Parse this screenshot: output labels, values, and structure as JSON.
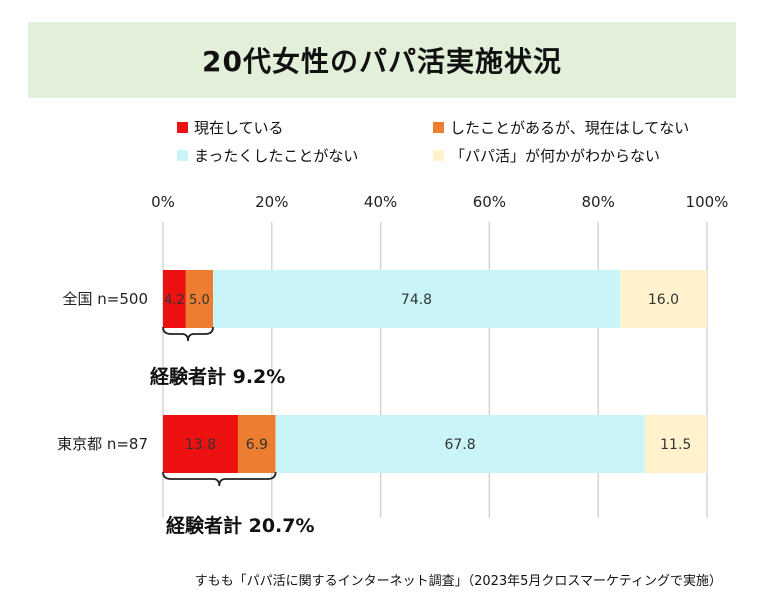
{
  "title": "20代女性のパパ活実施状況",
  "footnote": "すもも「パパ活に関するインターネット調査」（2023年5月クロスマーケティングで実施）",
  "colors": {
    "current": "#ee1111",
    "past": "#ed7d31",
    "never": "#c9f5f9",
    "unknown": "#fff2cc",
    "grid": "#d0d0d0",
    "title_band": "#e2efd9"
  },
  "chart_data": {
    "type": "bar",
    "orientation": "horizontal",
    "stacked": true,
    "title": "20代女性のパパ活実施状況",
    "categories": [
      "全国 n=500",
      "東京都 n=87"
    ],
    "series": [
      {
        "name": "現在している",
        "values": [
          4.2,
          13.8
        ],
        "color": "#ee1111"
      },
      {
        "name": "したことがあるが、現在はしてない",
        "values": [
          5.0,
          6.9
        ],
        "color": "#ed7d31"
      },
      {
        "name": "まったくしたことがない",
        "values": [
          74.8,
          67.8
        ],
        "color": "#c9f5f9"
      },
      {
        "name": "「パパ活」が何かがわからない",
        "values": [
          16.0,
          11.5
        ],
        "color": "#fff2cc"
      }
    ],
    "xlim": [
      0,
      100
    ],
    "xticks": [
      "0%",
      "20%",
      "40%",
      "60%",
      "80%",
      "100%"
    ],
    "grid": true,
    "legend_position": "top",
    "annotations": [
      "経験者計 9.2%",
      "経験者計 20.7%"
    ]
  }
}
